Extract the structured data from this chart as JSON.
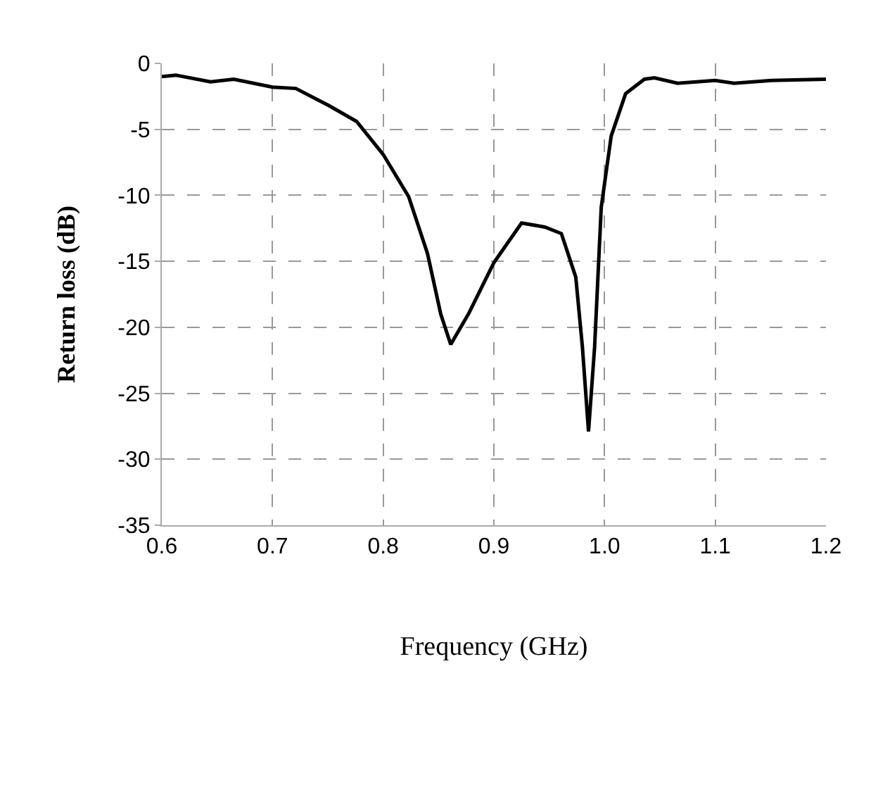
{
  "chart_data": {
    "type": "line",
    "xlabel": "Frequency (GHz)",
    "ylabel": "Return loss (dB)",
    "x": [
      0.6,
      0.613,
      0.644,
      0.665,
      0.7,
      0.721,
      0.751,
      0.776,
      0.8,
      0.823,
      0.84,
      0.852,
      0.861,
      0.877,
      0.9,
      0.925,
      0.946,
      0.961,
      0.974,
      0.98,
      0.9855,
      0.991,
      0.997,
      1.006,
      1.019,
      1.036,
      1.045,
      1.066,
      1.1,
      1.117,
      1.151,
      1.2
    ],
    "series": [
      {
        "color": "#000000",
        "values": [
          -1.0,
          -0.9,
          -1.4,
          -1.2,
          -1.8,
          -1.9,
          -3.2,
          -4.4,
          -6.9,
          -10.1,
          -14.4,
          -19.0,
          -21.3,
          -19.0,
          -15.1,
          -12.1,
          -12.4,
          -12.9,
          -16.2,
          -21.5,
          -27.9,
          -21.5,
          -10.9,
          -5.5,
          -2.3,
          -1.2,
          -1.1,
          -1.5,
          -1.3,
          -1.5,
          -1.3,
          -1.2
        ]
      }
    ],
    "xlim": [
      0.6,
      1.2
    ],
    "ylim": [
      -35,
      0
    ],
    "xticks": [
      0.6,
      0.7,
      0.8,
      0.9,
      {
        "value": 1.0,
        "label": "1.0"
      },
      1.1,
      1.2
    ],
    "yticks": [
      -35,
      -30,
      -25,
      -20,
      -15,
      -10,
      -5,
      0
    ],
    "grid": true,
    "marker": "none",
    "line_style": "solid"
  }
}
